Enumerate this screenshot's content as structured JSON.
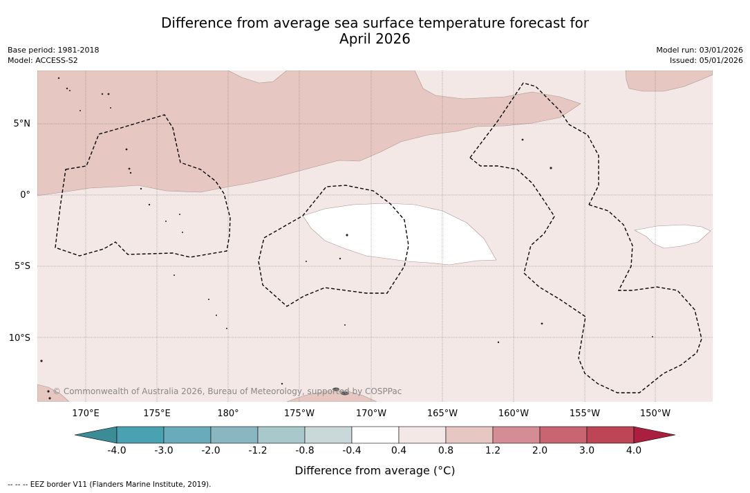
{
  "title": {
    "line1": "Difference from average sea surface temperature forecast for",
    "line2": "April 2026"
  },
  "meta_left": {
    "base_period": "Base period: 1981-2018",
    "model": "Model: ACCESS-S2"
  },
  "meta_right": {
    "model_run": "Model run: 03/01/2026",
    "issued": "Issued: 05/01/2026"
  },
  "map": {
    "lat_labels": [
      "5°N",
      "0°",
      "5°S",
      "10°S"
    ],
    "lon_labels": [
      "170°E",
      "175°E",
      "180°",
      "175°W",
      "170°W",
      "165°W",
      "160°W",
      "155°W",
      "150°W"
    ],
    "copyright": "© Commonwealth of Australia 2026, Bureau of Meteorology, supported by COSPPac",
    "region_colors": {
      "pale_warm": "#f4e8e6",
      "warm": "#e6c7c1",
      "neutral": "#ffffff",
      "border": "#000000",
      "grid": "#777777"
    }
  },
  "colorbar": {
    "tick_labels": [
      "-4.0",
      "-3.0",
      "-2.0",
      "-1.2",
      "-0.8",
      "-0.4",
      "0.4",
      "0.8",
      "1.2",
      "2.0",
      "3.0",
      "4.0"
    ],
    "colors": [
      "#3b8c97",
      "#4aa1b1",
      "#6aabbb",
      "#8ab6c2",
      "#a9c8cc",
      "#c9d8d9",
      "#ffffff",
      "#f4e8e6",
      "#e6c7c1",
      "#d58d95",
      "#c96570",
      "#bc4556",
      "#aa1e3e"
    ],
    "title": "Difference from average (°C)"
  },
  "legend_note": "--  --  -- EEZ border V11 (Flanders Marine Institute, 2019)."
}
